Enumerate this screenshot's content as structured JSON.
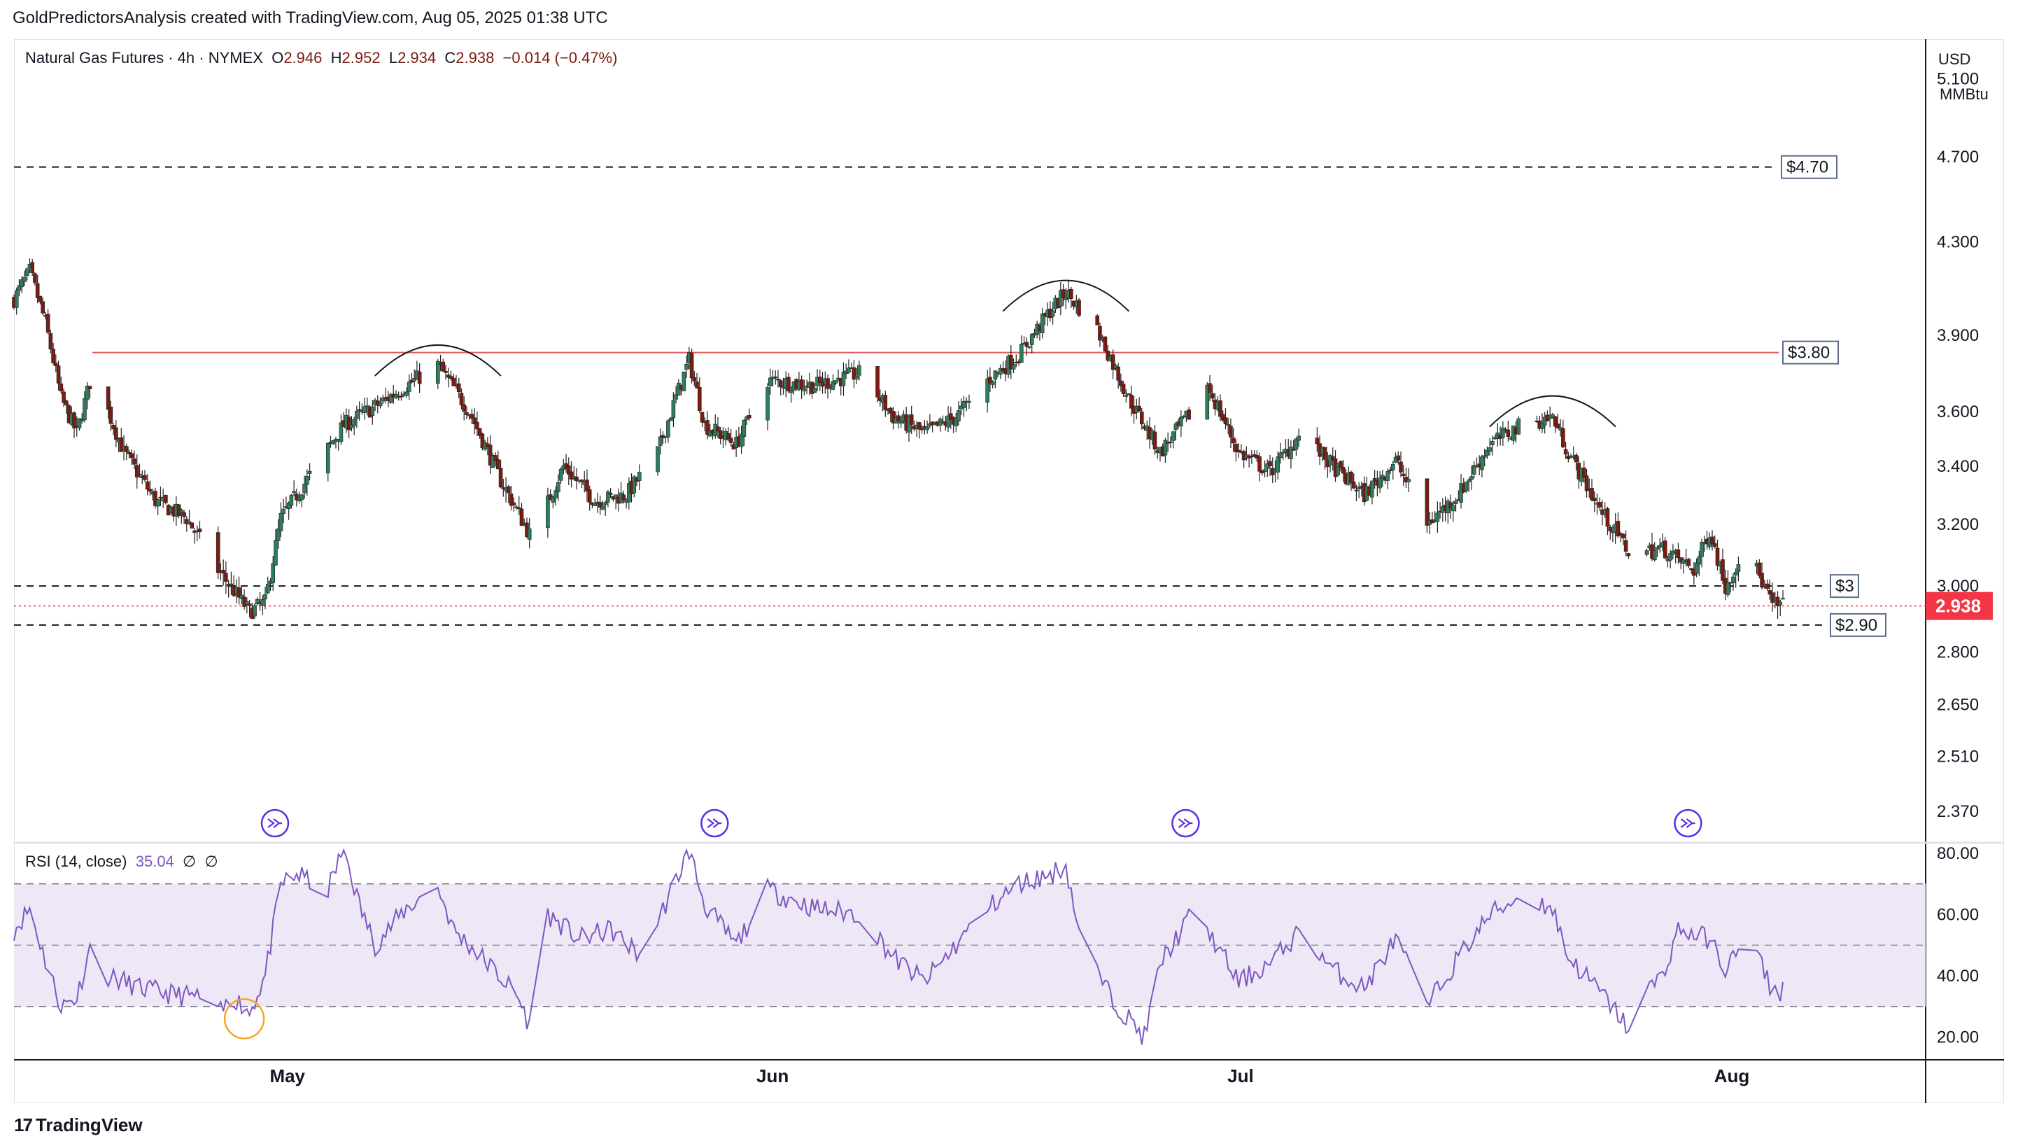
{
  "header": {
    "text": "GoldPredictorsAnalysis created with TradingView.com, Aug 05, 2025 01:38 UTC"
  },
  "symbol": {
    "name": "Natural Gas Futures",
    "timeframe": "4h",
    "exchange": "NYMEX",
    "open_label": "O",
    "open": "2.946",
    "high_label": "H",
    "high": "2.952",
    "low_label": "L",
    "low": "2.934",
    "close_label": "C",
    "close": "2.938",
    "change": "−0.014 (−0.47%)"
  },
  "axis": {
    "currency": "USD",
    "unit": "MMBtu"
  },
  "rsi": {
    "label": "RSI (14, close)",
    "value": "35.04",
    "extra1": "∅",
    "extra2": "∅"
  },
  "footer": {
    "brand": "TradingView"
  },
  "colors": {
    "up": "#2e7d5b",
    "down": "#7a1c12",
    "resistance": "#e05a5a",
    "current_price": "#f23645",
    "rsi_line": "#7e57c2",
    "rsi_band": "#ede7f6",
    "event_icon": "#5c2fe0",
    "highlight_circle": "#f5a623"
  },
  "chart_data": [
    {
      "type": "candlestick",
      "title": "Natural Gas Futures · 4h · NYMEX",
      "y_scale": "log",
      "ylim": [
        2.3,
        5.3
      ],
      "price_ticks": [
        "5.100",
        "4.700",
        "4.300",
        "3.900",
        "3.600",
        "3.400",
        "3.200",
        "3.000",
        "2.800",
        "2.650",
        "2.510",
        "2.370"
      ],
      "x_labels": [
        "May",
        "Jun",
        "Jul",
        "Aug"
      ],
      "current_price": "2.938",
      "levels": [
        {
          "label": "$4.70",
          "value": 4.65,
          "style": "dashed"
        },
        {
          "label": "$3.80",
          "value": 3.83,
          "style": "solid-red"
        },
        {
          "label": "$3",
          "value": 3.0,
          "style": "dashed"
        },
        {
          "label": "$2.90",
          "value": 2.88,
          "style": "dashed"
        }
      ],
      "close_path": [
        {
          "date": "2025-04-14",
          "close": 4.05
        },
        {
          "date": "2025-04-15",
          "close": 4.17
        },
        {
          "date": "2025-04-16",
          "close": 3.95
        },
        {
          "date": "2025-04-17",
          "close": 3.65
        },
        {
          "date": "2025-04-18",
          "close": 3.52
        },
        {
          "date": "2025-04-19",
          "close": 3.75
        },
        {
          "date": "2025-04-21",
          "close": 3.45
        },
        {
          "date": "2025-04-23",
          "close": 3.28
        },
        {
          "date": "2025-04-25",
          "close": 3.22
        },
        {
          "date": "2025-04-27",
          "close": 3.05
        },
        {
          "date": "2025-04-29",
          "close": 2.92
        },
        {
          "date": "2025-04-30",
          "close": 2.95
        },
        {
          "date": "2025-05-01",
          "close": 3.22
        },
        {
          "date": "2025-05-03",
          "close": 3.38
        },
        {
          "date": "2025-05-05",
          "close": 3.55
        },
        {
          "date": "2025-05-07",
          "close": 3.62
        },
        {
          "date": "2025-05-09",
          "close": 3.7
        },
        {
          "date": "2025-05-11",
          "close": 3.78
        },
        {
          "date": "2025-05-13",
          "close": 3.6
        },
        {
          "date": "2025-05-15",
          "close": 3.35
        },
        {
          "date": "2025-05-17",
          "close": 3.15
        },
        {
          "date": "2025-05-19",
          "close": 3.4
        },
        {
          "date": "2025-05-21",
          "close": 3.28
        },
        {
          "date": "2025-05-23",
          "close": 3.3
        },
        {
          "date": "2025-05-25",
          "close": 3.45
        },
        {
          "date": "2025-05-27",
          "close": 3.8
        },
        {
          "date": "2025-05-28",
          "close": 3.55
        },
        {
          "date": "2025-05-30",
          "close": 3.48
        },
        {
          "date": "2025-06-01",
          "close": 3.72
        },
        {
          "date": "2025-06-04",
          "close": 3.7
        },
        {
          "date": "2025-06-07",
          "close": 3.75
        },
        {
          "date": "2025-06-09",
          "close": 3.58
        },
        {
          "date": "2025-06-11",
          "close": 3.52
        },
        {
          "date": "2025-06-13",
          "close": 3.58
        },
        {
          "date": "2025-06-15",
          "close": 3.72
        },
        {
          "date": "2025-06-17",
          "close": 3.82
        },
        {
          "date": "2025-06-19",
          "close": 4.0
        },
        {
          "date": "2025-06-20",
          "close": 4.08
        },
        {
          "date": "2025-06-22",
          "close": 3.92
        },
        {
          "date": "2025-06-24",
          "close": 3.65
        },
        {
          "date": "2025-06-26",
          "close": 3.45
        },
        {
          "date": "2025-06-28",
          "close": 3.6
        },
        {
          "date": "2025-06-29",
          "close": 3.7
        },
        {
          "date": "2025-07-01",
          "close": 3.45
        },
        {
          "date": "2025-07-03",
          "close": 3.38
        },
        {
          "date": "2025-07-05",
          "close": 3.52
        },
        {
          "date": "2025-07-07",
          "close": 3.4
        },
        {
          "date": "2025-07-09",
          "close": 3.3
        },
        {
          "date": "2025-07-11",
          "close": 3.42
        },
        {
          "date": "2025-07-13",
          "close": 3.2
        },
        {
          "date": "2025-07-15",
          "close": 3.3
        },
        {
          "date": "2025-07-17",
          "close": 3.48
        },
        {
          "date": "2025-07-19",
          "close": 3.55
        },
        {
          "date": "2025-07-21",
          "close": 3.58
        },
        {
          "date": "2025-07-22",
          "close": 3.45
        },
        {
          "date": "2025-07-24",
          "close": 3.25
        },
        {
          "date": "2025-07-26",
          "close": 3.1
        },
        {
          "date": "2025-07-28",
          "close": 3.12
        },
        {
          "date": "2025-07-30",
          "close": 3.05
        },
        {
          "date": "2025-07-31",
          "close": 3.18
        },
        {
          "date": "2025-08-01",
          "close": 3.0
        },
        {
          "date": "2025-08-02",
          "close": 3.1
        },
        {
          "date": "2025-08-03",
          "close": 3.05
        },
        {
          "date": "2025-08-04",
          "close": 2.94
        }
      ],
      "pattern_arcs": [
        {
          "peak_date": "2025-05-11",
          "peak": 3.86
        },
        {
          "peak_date": "2025-06-20",
          "peak": 4.13
        },
        {
          "peak_date": "2025-07-21",
          "peak": 3.66
        }
      ],
      "event_markers": [
        "2025-04-30",
        "2025-05-28",
        "2025-06-27",
        "2025-07-29"
      ]
    },
    {
      "type": "line",
      "title": "RSI (14, close)",
      "ylim": [
        14,
        82
      ],
      "y_ticks": [
        "80.00",
        "60.00",
        "40.00",
        "20.00"
      ],
      "band": [
        30,
        70
      ],
      "midline": 50,
      "last_value": 35.04,
      "series": [
        {
          "date": "2025-04-14",
          "rsi": 55
        },
        {
          "date": "2025-04-15",
          "rsi": 62
        },
        {
          "date": "2025-04-16",
          "rsi": 45
        },
        {
          "date": "2025-04-17",
          "rsi": 30
        },
        {
          "date": "2025-04-18",
          "rsi": 33
        },
        {
          "date": "2025-04-19",
          "rsi": 52
        },
        {
          "date": "2025-04-20",
          "rsi": 40
        },
        {
          "date": "2025-04-22",
          "rsi": 36
        },
        {
          "date": "2025-04-24",
          "rsi": 34
        },
        {
          "date": "2025-04-26",
          "rsi": 33
        },
        {
          "date": "2025-04-27",
          "rsi": 27
        },
        {
          "date": "2025-04-28",
          "rsi": 33
        },
        {
          "date": "2025-04-29",
          "rsi": 28
        },
        {
          "date": "2025-04-30",
          "rsi": 40
        },
        {
          "date": "2025-05-01",
          "rsi": 70
        },
        {
          "date": "2025-05-02",
          "rsi": 73
        },
        {
          "date": "2025-05-04",
          "rsi": 68
        },
        {
          "date": "2025-05-05",
          "rsi": 82
        },
        {
          "date": "2025-05-06",
          "rsi": 63
        },
        {
          "date": "2025-05-07",
          "rsi": 50
        },
        {
          "date": "2025-05-09",
          "rsi": 62
        },
        {
          "date": "2025-05-11",
          "rsi": 69
        },
        {
          "date": "2025-05-12",
          "rsi": 55
        },
        {
          "date": "2025-05-14",
          "rsi": 45
        },
        {
          "date": "2025-05-16",
          "rsi": 34
        },
        {
          "date": "2025-05-17",
          "rsi": 22
        },
        {
          "date": "2025-05-18",
          "rsi": 60
        },
        {
          "date": "2025-05-20",
          "rsi": 52
        },
        {
          "date": "2025-05-22",
          "rsi": 55
        },
        {
          "date": "2025-05-24",
          "rsi": 46
        },
        {
          "date": "2025-05-27",
          "rsi": 81
        },
        {
          "date": "2025-05-28",
          "rsi": 63
        },
        {
          "date": "2025-05-30",
          "rsi": 50
        },
        {
          "date": "2025-06-01",
          "rsi": 68
        },
        {
          "date": "2025-06-04",
          "rsi": 62
        },
        {
          "date": "2025-06-07",
          "rsi": 60
        },
        {
          "date": "2025-06-09",
          "rsi": 46
        },
        {
          "date": "2025-06-11",
          "rsi": 38
        },
        {
          "date": "2025-06-13",
          "rsi": 50
        },
        {
          "date": "2025-06-15",
          "rsi": 62
        },
        {
          "date": "2025-06-17",
          "rsi": 70
        },
        {
          "date": "2025-06-19",
          "rsi": 73
        },
        {
          "date": "2025-06-20",
          "rsi": 76
        },
        {
          "date": "2025-06-21",
          "rsi": 50
        },
        {
          "date": "2025-06-23",
          "rsi": 32
        },
        {
          "date": "2025-06-25",
          "rsi": 20
        },
        {
          "date": "2025-06-26",
          "rsi": 44
        },
        {
          "date": "2025-06-28",
          "rsi": 60
        },
        {
          "date": "2025-06-29",
          "rsi": 55
        },
        {
          "date": "2025-07-01",
          "rsi": 38
        },
        {
          "date": "2025-07-03",
          "rsi": 44
        },
        {
          "date": "2025-07-05",
          "rsi": 55
        },
        {
          "date": "2025-07-07",
          "rsi": 42
        },
        {
          "date": "2025-07-09",
          "rsi": 36
        },
        {
          "date": "2025-07-11",
          "rsi": 52
        },
        {
          "date": "2025-07-13",
          "rsi": 30
        },
        {
          "date": "2025-07-15",
          "rsi": 46
        },
        {
          "date": "2025-07-17",
          "rsi": 60
        },
        {
          "date": "2025-07-19",
          "rsi": 66
        },
        {
          "date": "2025-07-21",
          "rsi": 62
        },
        {
          "date": "2025-07-22",
          "rsi": 46
        },
        {
          "date": "2025-07-24",
          "rsi": 35
        },
        {
          "date": "2025-07-26",
          "rsi": 22
        },
        {
          "date": "2025-07-27",
          "rsi": 35
        },
        {
          "date": "2025-07-28",
          "rsi": 40
        },
        {
          "date": "2025-07-29",
          "rsi": 55
        },
        {
          "date": "2025-07-31",
          "rsi": 52
        },
        {
          "date": "2025-08-01",
          "rsi": 42
        },
        {
          "date": "2025-08-02",
          "rsi": 50
        },
        {
          "date": "2025-08-03",
          "rsi": 47
        },
        {
          "date": "2025-08-04",
          "rsi": 35
        }
      ]
    }
  ]
}
